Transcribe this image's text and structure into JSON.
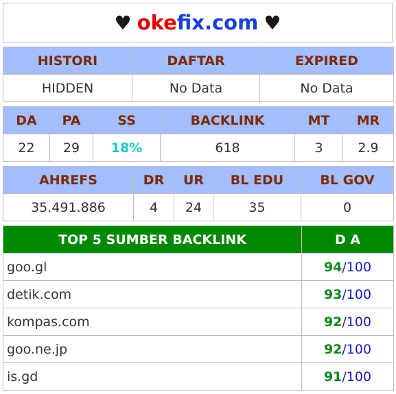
{
  "title": {
    "heart_left": "♥",
    "part_red": "oke",
    "part_blue": "fix.com",
    "heart_right": "♥"
  },
  "status": {
    "headers": [
      "HISTORI",
      "DAFTAR",
      "EXPIRED"
    ],
    "values": [
      "HIDDEN",
      "No Data",
      "No Data"
    ]
  },
  "metrics": {
    "headers": [
      "DA",
      "PA",
      "SS",
      "BACKLINK",
      "MT",
      "MR"
    ],
    "values": [
      "22",
      "29",
      "18%",
      "618",
      "3",
      "2.9"
    ]
  },
  "ahrefs": {
    "headers": [
      "AHREFS",
      "DR",
      "UR",
      "BL EDU",
      "BL GOV"
    ],
    "values": [
      "35.491.886",
      "4",
      "24",
      "35",
      "0"
    ]
  },
  "top5": {
    "header_site": "TOP 5 SUMBER BACKLINK",
    "header_da": "D A",
    "rows": [
      {
        "site": "goo.gl",
        "da": "94",
        "max": "100"
      },
      {
        "site": "detik.com",
        "da": "93",
        "max": "100"
      },
      {
        "site": "kompas.com",
        "da": "92",
        "max": "100"
      },
      {
        "site": "goo.ne.jp",
        "da": "92",
        "max": "100"
      },
      {
        "site": "is.gd",
        "da": "91",
        "max": "100"
      }
    ]
  },
  "colors": {
    "header_bg": "#a4befd",
    "header_text": "#7b2a0c",
    "top5_header_bg": "#008900",
    "ss_color": "#19c6c8",
    "da_green": "#12861a",
    "da_blue": "#1a1ab8"
  }
}
